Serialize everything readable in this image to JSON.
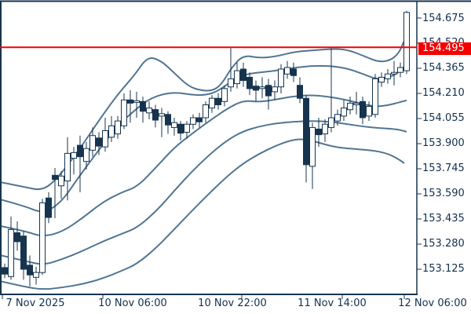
{
  "colors": {
    "background": "#ffffff",
    "axis": "#17344f",
    "text": "#123050",
    "price_line": "#f40000",
    "price_label_text": "#ffffff",
    "bands": "#507593",
    "bullish_fill": "#ffffff",
    "bearish_fill": "#17344f"
  },
  "chart_data": {
    "type": "candlestick",
    "grid": false,
    "price_line": {
      "label": "154.495",
      "value": 154.495,
      "color": "#f40000"
    },
    "y_axis": {
      "tick_labels": [
        "154.675",
        "154.520",
        "154.365",
        "154.210",
        "154.055",
        "153.900",
        "153.745",
        "153.590",
        "153.435",
        "153.280",
        "153.125"
      ],
      "tick_prices": [
        154.675,
        154.52,
        154.365,
        154.21,
        154.055,
        153.9,
        153.745,
        153.59,
        153.435,
        153.28,
        153.125
      ]
    },
    "x_axis": {
      "labels": [
        "7 Nov 2025",
        "10 Nov 06:00",
        "10 Nov 22:00",
        "11 Nov 14:00",
        "12 Nov 06:00"
      ]
    },
    "candles": [
      [
        153.135,
        153.16,
        153.07,
        153.095
      ],
      [
        153.08,
        153.45,
        153.06,
        153.37
      ],
      [
        153.35,
        153.42,
        153.24,
        153.295
      ],
      [
        153.33,
        153.36,
        153.06,
        153.125
      ],
      [
        153.15,
        153.21,
        153.02,
        153.09
      ],
      [
        153.075,
        153.14,
        153.03,
        153.105
      ],
      [
        153.105,
        153.56,
        153.09,
        153.535
      ],
      [
        153.565,
        153.6,
        153.41,
        153.445
      ],
      [
        153.705,
        153.75,
        153.44,
        153.68
      ],
      [
        153.64,
        153.73,
        153.56,
        153.7
      ],
      [
        153.67,
        153.94,
        153.55,
        153.84
      ],
      [
        153.81,
        153.88,
        153.71,
        153.845
      ],
      [
        153.89,
        153.95,
        153.6,
        153.82
      ],
      [
        153.79,
        153.91,
        153.74,
        153.87
      ],
      [
        153.86,
        154.0,
        153.82,
        153.95
      ],
      [
        153.935,
        153.97,
        153.83,
        153.885
      ],
      [
        153.88,
        154.06,
        153.85,
        153.98
      ],
      [
        153.94,
        154.07,
        153.91,
        154.01
      ],
      [
        153.96,
        154.07,
        153.93,
        154.04
      ],
      [
        154.01,
        154.21,
        153.99,
        154.17
      ],
      [
        154.17,
        154.23,
        154.03,
        154.15
      ],
      [
        154.155,
        154.22,
        154.06,
        154.165
      ],
      [
        154.16,
        154.19,
        154.03,
        154.1
      ],
      [
        154.09,
        154.16,
        154.05,
        154.12
      ],
      [
        154.11,
        154.14,
        154.0,
        154.045
      ],
      [
        154.07,
        154.12,
        153.94,
        154.085
      ],
      [
        154.08,
        154.1,
        153.96,
        154.015
      ],
      [
        154.0,
        154.06,
        153.95,
        154.03
      ],
      [
        154.02,
        154.04,
        153.92,
        153.965
      ],
      [
        153.97,
        154.04,
        153.93,
        154.02
      ],
      [
        154.02,
        154.08,
        153.99,
        154.06
      ],
      [
        154.06,
        154.09,
        154.0,
        154.035
      ],
      [
        154.06,
        154.16,
        154.03,
        154.14
      ],
      [
        154.12,
        154.2,
        154.09,
        154.18
      ],
      [
        154.18,
        154.21,
        154.11,
        154.14
      ],
      [
        154.16,
        154.26,
        154.13,
        154.24
      ],
      [
        154.25,
        154.49,
        154.22,
        154.3
      ],
      [
        154.27,
        154.4,
        154.24,
        154.35
      ],
      [
        154.36,
        154.4,
        154.25,
        154.29
      ],
      [
        154.31,
        154.34,
        154.2,
        154.24
      ],
      [
        154.255,
        154.29,
        154.16,
        154.23
      ],
      [
        154.24,
        154.31,
        154.18,
        154.25
      ],
      [
        154.26,
        154.3,
        154.11,
        154.195
      ],
      [
        154.22,
        154.29,
        154.17,
        154.25
      ],
      [
        154.25,
        154.39,
        154.21,
        154.36
      ],
      [
        154.33,
        154.41,
        154.3,
        154.37
      ],
      [
        154.36,
        154.4,
        154.28,
        154.32
      ],
      [
        154.26,
        154.31,
        154.15,
        154.18
      ],
      [
        154.18,
        154.2,
        153.66,
        153.77
      ],
      [
        153.76,
        154.03,
        153.62,
        154.0
      ],
      [
        153.99,
        154.06,
        153.88,
        153.955
      ],
      [
        153.96,
        154.05,
        153.91,
        154.02
      ],
      [
        154.0,
        154.49,
        153.97,
        154.06
      ],
      [
        154.04,
        154.11,
        154.01,
        154.08
      ],
      [
        154.07,
        154.17,
        154.04,
        154.12
      ],
      [
        154.11,
        154.19,
        154.08,
        154.15
      ],
      [
        154.14,
        154.22,
        154.08,
        154.15
      ],
      [
        154.16,
        154.19,
        154.02,
        154.06
      ],
      [
        154.07,
        154.16,
        154.04,
        154.13
      ],
      [
        154.08,
        154.33,
        154.06,
        154.3
      ],
      [
        154.28,
        154.34,
        154.25,
        154.31
      ],
      [
        154.3,
        154.36,
        154.27,
        154.33
      ],
      [
        154.33,
        154.41,
        154.26,
        154.34
      ],
      [
        154.34,
        154.4,
        154.31,
        154.37
      ],
      [
        154.35,
        154.72,
        154.33,
        154.71
      ]
    ],
    "bands": {
      "color": "#507593",
      "lines": [
        {
          "name": "upper-2",
          "points": [
            [
              0,
              153.663
            ],
            [
              30,
              153.634
            ],
            [
              55,
              153.609
            ],
            [
              75,
              153.697
            ],
            [
              100,
              153.856
            ],
            [
              125,
              154.036
            ],
            [
              150,
              154.205
            ],
            [
              172,
              154.326
            ],
            [
              188,
              154.438
            ],
            [
              205,
              154.413
            ],
            [
              222,
              154.336
            ],
            [
              240,
              154.254
            ],
            [
              255,
              154.229
            ],
            [
              270,
              154.225
            ],
            [
              282,
              154.263
            ],
            [
              295,
              154.37
            ],
            [
              310,
              154.447
            ],
            [
              330,
              154.428
            ],
            [
              352,
              154.438
            ],
            [
              375,
              154.467
            ],
            [
              400,
              154.476
            ],
            [
              428,
              154.486
            ],
            [
              445,
              154.476
            ],
            [
              465,
              154.438
            ],
            [
              482,
              154.404
            ],
            [
              497,
              154.413
            ],
            [
              508,
              154.457
            ],
            [
              514,
              154.525
            ],
            [
              518,
              154.568
            ]
          ]
        },
        {
          "name": "upper-1",
          "points": [
            [
              0,
              153.556
            ],
            [
              30,
              153.517
            ],
            [
              55,
              153.469
            ],
            [
              78,
              153.537
            ],
            [
              100,
              153.692
            ],
            [
              125,
              153.856
            ],
            [
              150,
              154.011
            ],
            [
              172,
              154.108
            ],
            [
              190,
              154.176
            ],
            [
              210,
              154.21
            ],
            [
              228,
              154.215
            ],
            [
              245,
              154.2
            ],
            [
              262,
              154.2
            ],
            [
              276,
              154.22
            ],
            [
              290,
              154.268
            ],
            [
              305,
              154.316
            ],
            [
              322,
              154.336
            ],
            [
              345,
              154.346
            ],
            [
              370,
              154.365
            ],
            [
              395,
              154.38
            ],
            [
              420,
              154.38
            ],
            [
              442,
              154.365
            ],
            [
              462,
              154.331
            ],
            [
              480,
              154.297
            ],
            [
              495,
              154.307
            ],
            [
              507,
              154.336
            ],
            [
              515,
              154.375
            ],
            [
              518,
              154.394
            ]
          ]
        },
        {
          "name": "middle",
          "points": [
            [
              0,
              153.392
            ],
            [
              30,
              153.363
            ],
            [
              55,
              153.324
            ],
            [
              80,
              153.358
            ],
            [
              105,
              153.44
            ],
            [
              130,
              153.537
            ],
            [
              155,
              153.6
            ],
            [
              175,
              153.634
            ],
            [
              200,
              153.76
            ],
            [
              222,
              153.876
            ],
            [
              245,
              153.963
            ],
            [
              268,
              154.045
            ],
            [
              290,
              154.118
            ],
            [
              310,
              154.167
            ],
            [
              330,
              154.157
            ],
            [
              350,
              154.171
            ],
            [
              372,
              154.191
            ],
            [
              395,
              154.2
            ],
            [
              418,
              154.191
            ],
            [
              440,
              154.171
            ],
            [
              460,
              154.147
            ],
            [
              478,
              154.128
            ],
            [
              495,
              154.137
            ],
            [
              510,
              154.157
            ],
            [
              518,
              154.167
            ]
          ]
        },
        {
          "name": "lower-1",
          "points": [
            [
              0,
              153.212
            ],
            [
              30,
              153.179
            ],
            [
              55,
              153.15
            ],
            [
              80,
              153.188
            ],
            [
              105,
              153.237
            ],
            [
              130,
              153.295
            ],
            [
              155,
              153.343
            ],
            [
              175,
              153.382
            ],
            [
              200,
              153.488
            ],
            [
              222,
              153.609
            ],
            [
              245,
              153.731
            ],
            [
              268,
              153.837
            ],
            [
              290,
              153.924
            ],
            [
              310,
              153.977
            ],
            [
              330,
              154.006
            ],
            [
              352,
              154.026
            ],
            [
              375,
              154.036
            ],
            [
              398,
              154.04
            ],
            [
              420,
              154.036
            ],
            [
              442,
              154.021
            ],
            [
              462,
              154.006
            ],
            [
              482,
              153.996
            ],
            [
              500,
              153.992
            ],
            [
              512,
              153.982
            ],
            [
              518,
              153.973
            ]
          ]
        },
        {
          "name": "lower-2",
          "points": [
            [
              0,
              153.052
            ],
            [
              30,
              153.018
            ],
            [
              55,
              152.999
            ],
            [
              80,
              153.013
            ],
            [
              105,
              153.033
            ],
            [
              130,
              153.067
            ],
            [
              155,
              153.115
            ],
            [
              175,
              153.159
            ],
            [
              200,
              153.261
            ],
            [
              222,
              153.372
            ],
            [
              245,
              153.488
            ],
            [
              268,
              153.6
            ],
            [
              290,
              153.701
            ],
            [
              310,
              153.779
            ],
            [
              330,
              153.837
            ],
            [
              350,
              153.885
            ],
            [
              372,
              153.924
            ],
            [
              390,
              153.929
            ],
            [
              410,
              153.9
            ],
            [
              430,
              153.876
            ],
            [
              455,
              153.866
            ],
            [
              478,
              153.856
            ],
            [
              495,
              153.837
            ],
            [
              508,
              153.803
            ],
            [
              515,
              153.779
            ]
          ]
        }
      ]
    }
  }
}
